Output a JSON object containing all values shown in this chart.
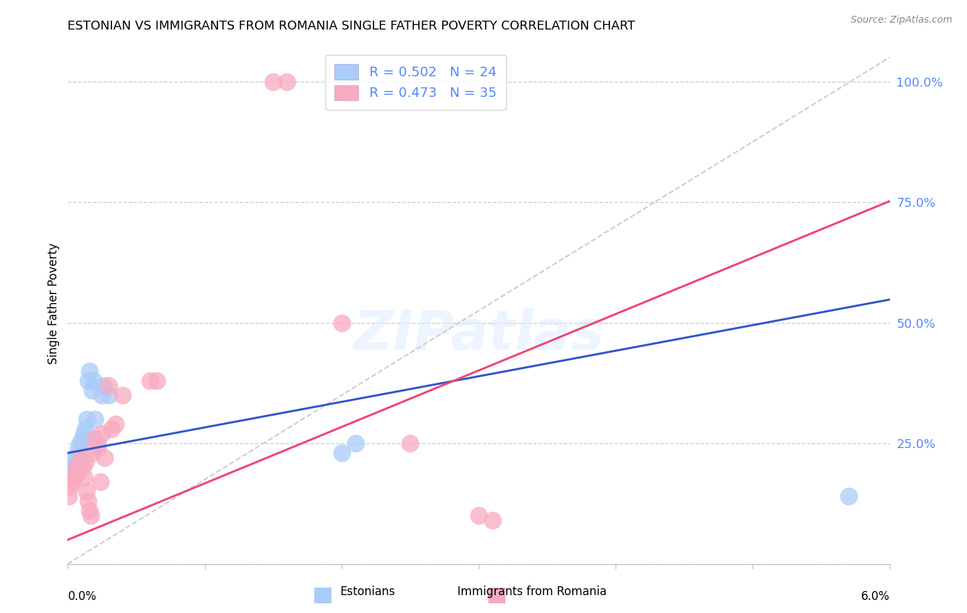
{
  "title": "ESTONIAN VS IMMIGRANTS FROM ROMANIA SINGLE FATHER POVERTY CORRELATION CHART",
  "source": "Source: ZipAtlas.com",
  "ylabel": "Single Father Poverty",
  "xlim": [
    0.0,
    0.06
  ],
  "ylim": [
    0.0,
    1.08
  ],
  "ytick_vals": [
    0.0,
    0.25,
    0.5,
    0.75,
    1.0
  ],
  "ytick_labels": [
    "",
    "25.0%",
    "50.0%",
    "75.0%",
    "100.0%"
  ],
  "blue_color": "#aaccf8",
  "pink_color": "#f8aac0",
  "blue_line_color": "#3355cc",
  "pink_line_color": "#ee4477",
  "diagonal_color": "#cccccc",
  "watermark_text": "ZIPatlas",
  "blue_intercept": 0.23,
  "blue_slope": 5.3,
  "pink_intercept": 0.05,
  "pink_slope": 11.7,
  "blue_x": [
    0.0002,
    0.0004,
    0.0005,
    0.0006,
    0.0007,
    0.0008,
    0.0009,
    0.001,
    0.0011,
    0.0012,
    0.0013,
    0.0014,
    0.0015,
    0.0016,
    0.0018,
    0.0019,
    0.002,
    0.0022,
    0.0025,
    0.0026,
    0.003,
    0.02,
    0.021,
    0.057
  ],
  "blue_y": [
    0.18,
    0.2,
    0.22,
    0.2,
    0.22,
    0.24,
    0.25,
    0.23,
    0.26,
    0.27,
    0.28,
    0.3,
    0.38,
    0.4,
    0.36,
    0.38,
    0.3,
    0.25,
    0.35,
    0.37,
    0.35,
    0.23,
    0.25,
    0.14
  ],
  "pink_x": [
    0.0001,
    0.0002,
    0.0003,
    0.0004,
    0.0005,
    0.0006,
    0.0007,
    0.0008,
    0.0009,
    0.001,
    0.0011,
    0.0012,
    0.0013,
    0.0014,
    0.0015,
    0.0016,
    0.0017,
    0.0018,
    0.002,
    0.0022,
    0.0024,
    0.0025,
    0.0027,
    0.003,
    0.0032,
    0.0035,
    0.004,
    0.006,
    0.0065,
    0.015,
    0.016,
    0.02,
    0.025,
    0.03,
    0.031
  ],
  "pink_y": [
    0.14,
    0.16,
    0.18,
    0.17,
    0.18,
    0.19,
    0.2,
    0.19,
    0.21,
    0.22,
    0.2,
    0.18,
    0.21,
    0.15,
    0.13,
    0.11,
    0.1,
    0.23,
    0.26,
    0.24,
    0.17,
    0.27,
    0.22,
    0.37,
    0.28,
    0.29,
    0.35,
    0.38,
    0.38,
    1.0,
    1.0,
    0.5,
    0.25,
    0.1,
    0.09
  ],
  "legend_blue_text": "R = 0.502   N = 24",
  "legend_pink_text": "R = 0.473   N = 35",
  "legend_color": "#5588ff"
}
